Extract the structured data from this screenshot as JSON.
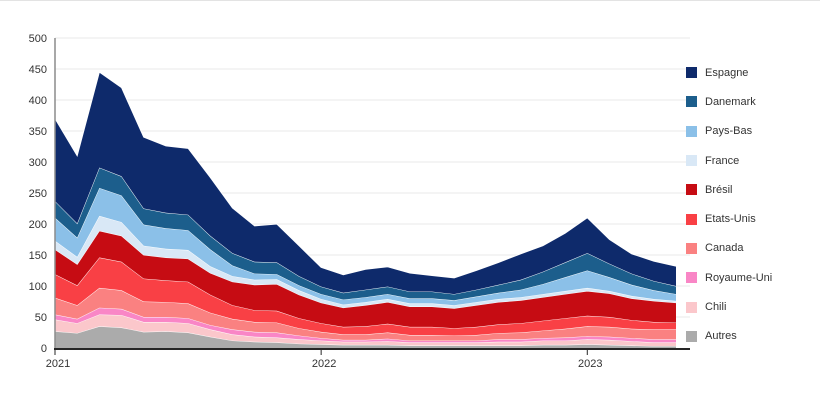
{
  "chart_data": {
    "type": "area",
    "stacked": true,
    "title": "",
    "xlabel": "",
    "ylabel": "",
    "ylim": [
      0,
      500
    ],
    "y_ticks": [
      0,
      50,
      100,
      150,
      200,
      250,
      300,
      350,
      400,
      450,
      500
    ],
    "grid": true,
    "legend_position": "right",
    "x": [
      "2021-01",
      "2021-02",
      "2021-03",
      "2021-04",
      "2021-05",
      "2021-06",
      "2021-07",
      "2021-08",
      "2021-09",
      "2021-10",
      "2021-11",
      "2021-12",
      "2022-01",
      "2022-02",
      "2022-03",
      "2022-04",
      "2022-05",
      "2022-06",
      "2022-07",
      "2022-08",
      "2022-09",
      "2022-10",
      "2022-11",
      "2022-12",
      "2023-01",
      "2023-02",
      "2023-03",
      "2023-04",
      "2023-05"
    ],
    "x_axis_labels": [
      {
        "label": "2021",
        "index": 0
      },
      {
        "label": "2022",
        "index": 12
      },
      {
        "label": "2023",
        "index": 24
      }
    ],
    "series_bottom_to_top": [
      {
        "name": "Autres",
        "color": "#ABABAB",
        "values": [
          27,
          24,
          35,
          33,
          26,
          27,
          25,
          18,
          12,
          10,
          9,
          7,
          6,
          5,
          5,
          5,
          4,
          4,
          4,
          4,
          4,
          4,
          5,
          5,
          6,
          5,
          4,
          3,
          3
        ]
      },
      {
        "name": "Chili",
        "color": "#FBC7CB",
        "values": [
          19,
          16,
          19,
          20,
          16,
          15,
          15,
          12,
          10,
          8,
          8,
          7,
          6,
          5,
          5,
          6,
          5,
          5,
          5,
          5,
          6,
          6,
          7,
          7,
          8,
          8,
          7,
          6,
          6
        ]
      },
      {
        "name": "Royaume-Uni",
        "color": "#F986C6",
        "values": [
          8,
          7,
          11,
          10,
          8,
          8,
          8,
          7,
          8,
          8,
          8,
          6,
          4,
          3,
          3,
          4,
          3,
          3,
          3,
          3,
          4,
          4,
          4,
          5,
          5,
          5,
          5,
          5,
          5
        ]
      },
      {
        "name": "Canada",
        "color": "#FA8181",
        "values": [
          27,
          22,
          32,
          30,
          25,
          24,
          24,
          20,
          17,
          16,
          16,
          12,
          10,
          9,
          9,
          10,
          9,
          9,
          8,
          9,
          10,
          11,
          12,
          14,
          16,
          16,
          15,
          16,
          16
        ]
      },
      {
        "name": "Etats-Unis",
        "color": "#F94045",
        "values": [
          38,
          32,
          49,
          46,
          37,
          35,
          35,
          29,
          22,
          19,
          19,
          16,
          14,
          12,
          13,
          14,
          13,
          13,
          12,
          13,
          14,
          15,
          16,
          17,
          17,
          16,
          14,
          12,
          11
        ]
      },
      {
        "name": "Brésil",
        "color": "#C60C13",
        "values": [
          40,
          34,
          43,
          42,
          38,
          37,
          37,
          35,
          38,
          41,
          43,
          38,
          33,
          31,
          34,
          35,
          33,
          33,
          32,
          35,
          36,
          37,
          38,
          39,
          40,
          38,
          35,
          34,
          32
        ]
      },
      {
        "name": "France",
        "color": "#D9E8F6",
        "values": [
          14,
          12,
          24,
          22,
          15,
          14,
          14,
          11,
          9,
          8,
          8,
          7,
          6,
          5,
          5,
          5,
          5,
          5,
          5,
          5,
          5,
          5,
          5,
          5,
          5,
          4,
          4,
          3,
          3
        ]
      },
      {
        "name": "Pays-Bas",
        "color": "#8BC0E8",
        "values": [
          37,
          31,
          45,
          43,
          34,
          33,
          32,
          27,
          17,
          10,
          8,
          8,
          8,
          8,
          8,
          8,
          8,
          8,
          8,
          9,
          10,
          12,
          16,
          22,
          28,
          22,
          18,
          14,
          11
        ]
      },
      {
        "name": "Danemark",
        "color": "#1C5E8C",
        "values": [
          27,
          23,
          33,
          31,
          26,
          25,
          25,
          22,
          20,
          19,
          19,
          15,
          12,
          11,
          12,
          12,
          11,
          11,
          10,
          11,
          13,
          16,
          20,
          24,
          28,
          22,
          18,
          15,
          13
        ]
      },
      {
        "name": "Espagne",
        "color": "#0E2A6B",
        "values": [
          133,
          109,
          154,
          143,
          115,
          108,
          107,
          94,
          73,
          58,
          62,
          49,
          31,
          29,
          33,
          32,
          30,
          26,
          26,
          31,
          36,
          42,
          42,
          47,
          57,
          39,
          32,
          32,
          32
        ]
      }
    ],
    "legend_top_to_bottom": [
      "Espagne",
      "Danemark",
      "Pays-Bas",
      "France",
      "Brésil",
      "Etats-Unis",
      "Canada",
      "Royaume-Uni",
      "Chili",
      "Autres"
    ],
    "colors": {
      "grid_line": "#e8e8e8",
      "y_axis_line": "#8c8c8c",
      "x_axis_line": "#262626",
      "tick_label": "#333333",
      "background": "#ffffff"
    }
  }
}
